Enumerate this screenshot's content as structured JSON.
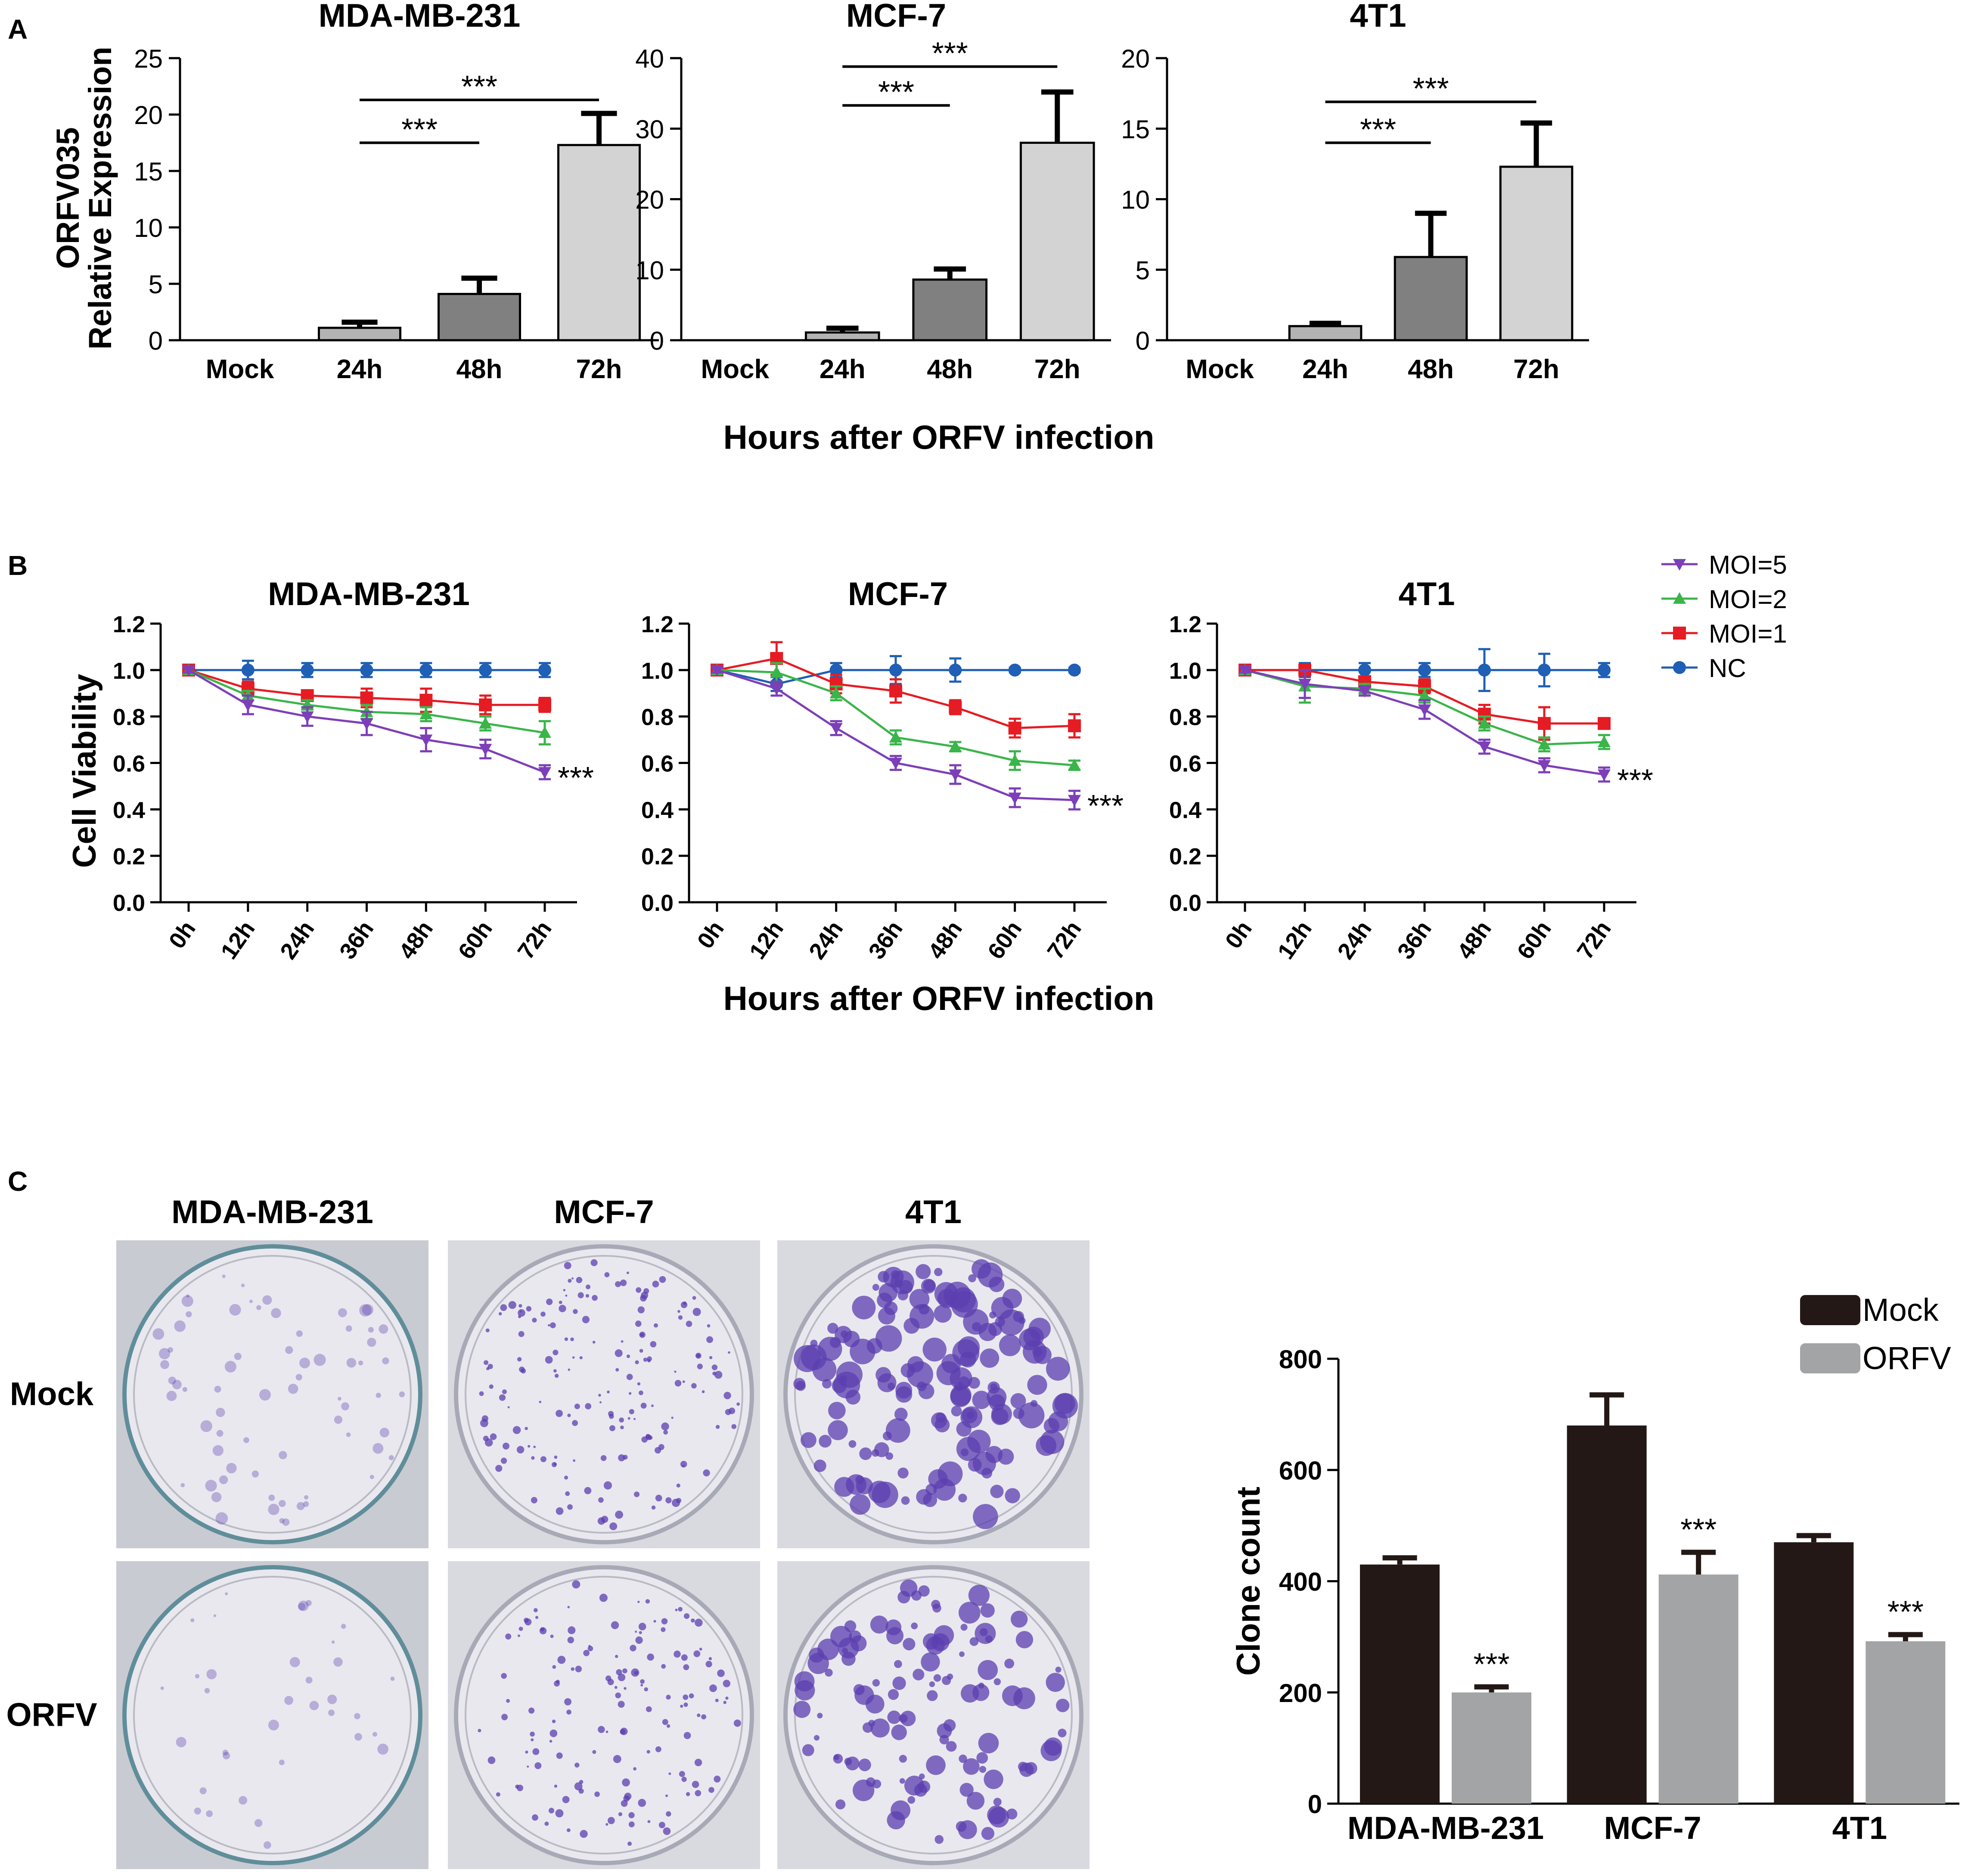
{
  "panel_letters": {
    "a": "A",
    "b": "B",
    "c": "C"
  },
  "colors": {
    "bar_24h": "#b3b3b3",
    "bar_48h": "#808080",
    "bar_72h": "#d3d3d3",
    "moi5": "#7d3fb8",
    "moi2": "#3ab54a",
    "moi1": "#e51c23",
    "nc": "#1f5fb5",
    "mock_bar": "#231815",
    "orfv_bar": "#a3a4a6",
    "stain": "#5b3fb0"
  },
  "panel_a": {
    "ylabel_lines": [
      "ORFV035",
      "Relative Expression"
    ],
    "xlabel": "Hours after ORFV infection",
    "chart_data": [
      {
        "type": "bar",
        "title": "MDA-MB-231",
        "categories": [
          "Mock",
          "24h",
          "48h",
          "72h"
        ],
        "values": [
          0,
          1.1,
          4.1,
          17.3
        ],
        "errors": [
          0,
          0.5,
          1.4,
          2.8
        ],
        "ylim": [
          0,
          25
        ],
        "yticks": [
          "0",
          "5",
          "10",
          "15",
          "20",
          "25"
        ],
        "significance": [
          {
            "from": 1,
            "to": 2,
            "level": 17.5,
            "label": "***"
          },
          {
            "from": 1,
            "to": 3,
            "level": 21.3,
            "label": "***"
          }
        ]
      },
      {
        "type": "bar",
        "title": "MCF-7",
        "categories": [
          "Mock",
          "24h",
          "48h",
          "72h"
        ],
        "values": [
          0,
          1.1,
          8.6,
          28.0
        ],
        "errors": [
          0,
          0.6,
          1.5,
          7.2
        ],
        "ylim": [
          0,
          40
        ],
        "yticks": [
          "0",
          "10",
          "20",
          "30",
          "40"
        ],
        "significance": [
          {
            "from": 1,
            "to": 2,
            "level": 33.3,
            "label": "***"
          },
          {
            "from": 1,
            "to": 3,
            "level": 38.8,
            "label": "***"
          }
        ]
      },
      {
        "type": "bar",
        "title": "4T1",
        "categories": [
          "Mock",
          "24h",
          "48h",
          "72h"
        ],
        "values": [
          0,
          1.0,
          5.9,
          12.3
        ],
        "errors": [
          0,
          0.2,
          3.1,
          3.1
        ],
        "ylim": [
          0,
          20
        ],
        "yticks": [
          "0",
          "5",
          "10",
          "15",
          "20"
        ],
        "significance": [
          {
            "from": 1,
            "to": 2,
            "level": 14.0,
            "label": "***"
          },
          {
            "from": 1,
            "to": 3,
            "level": 16.9,
            "label": "***"
          }
        ]
      }
    ]
  },
  "panel_b": {
    "ylabel": "Cell Viability",
    "xlabel": "Hours after ORFV infection",
    "legend": [
      "MOI=5",
      "MOI=2",
      "MOI=1",
      "NC"
    ],
    "chart_data": [
      {
        "type": "line",
        "title": "MDA-MB-231",
        "x": [
          "0h",
          "12h",
          "24h",
          "36h",
          "48h",
          "60h",
          "72h"
        ],
        "ylim": [
          0,
          1.2
        ],
        "yticks": [
          "0.0",
          "0.2",
          "0.4",
          "0.6",
          "0.8",
          "1.0",
          "1.2"
        ],
        "annotation": "***",
        "series": [
          {
            "name": "MOI=5",
            "values": [
              1.0,
              0.85,
              0.8,
              0.77,
              0.7,
              0.66,
              0.56
            ],
            "errors": [
              0.01,
              0.04,
              0.04,
              0.05,
              0.05,
              0.04,
              0.03
            ]
          },
          {
            "name": "MOI=2",
            "values": [
              1.0,
              0.89,
              0.85,
              0.82,
              0.81,
              0.77,
              0.73
            ],
            "errors": [
              0.01,
              0.02,
              0.02,
              0.03,
              0.03,
              0.03,
              0.05
            ]
          },
          {
            "name": "MOI=1",
            "values": [
              1.0,
              0.92,
              0.89,
              0.88,
              0.87,
              0.85,
              0.85
            ],
            "errors": [
              0.01,
              0.03,
              0.02,
              0.04,
              0.05,
              0.04,
              0.03
            ]
          },
          {
            "name": "NC",
            "values": [
              1.0,
              1.0,
              1.0,
              1.0,
              1.0,
              1.0,
              1.0
            ],
            "errors": [
              0.01,
              0.04,
              0.03,
              0.03,
              0.03,
              0.03,
              0.03
            ]
          }
        ]
      },
      {
        "type": "line",
        "title": "MCF-7",
        "x": [
          "0h",
          "12h",
          "24h",
          "36h",
          "48h",
          "60h",
          "72h"
        ],
        "ylim": [
          0,
          1.2
        ],
        "yticks": [
          "0.0",
          "0.2",
          "0.4",
          "0.6",
          "0.8",
          "1.0",
          "1.2"
        ],
        "annotation": "***",
        "series": [
          {
            "name": "MOI=5",
            "values": [
              1.0,
              0.92,
              0.75,
              0.6,
              0.55,
              0.45,
              0.44
            ],
            "errors": [
              0.01,
              0.03,
              0.03,
              0.03,
              0.04,
              0.04,
              0.04
            ]
          },
          {
            "name": "MOI=2",
            "values": [
              1.0,
              0.99,
              0.9,
              0.71,
              0.67,
              0.61,
              0.59
            ],
            "errors": [
              0.01,
              0.04,
              0.03,
              0.03,
              0.02,
              0.04,
              0.02
            ]
          },
          {
            "name": "MOI=1",
            "values": [
              1.0,
              1.05,
              0.94,
              0.91,
              0.84,
              0.75,
              0.76
            ],
            "errors": [
              0.01,
              0.07,
              0.04,
              0.05,
              0.03,
              0.04,
              0.05
            ]
          },
          {
            "name": "NC",
            "values": [
              1.0,
              0.94,
              1.0,
              1.0,
              1.0,
              1.0,
              1.0
            ],
            "errors": [
              0.01,
              0.03,
              0.03,
              0.06,
              0.05,
              0.01,
              0.01
            ]
          }
        ]
      },
      {
        "type": "line",
        "title": "4T1",
        "x": [
          "0h",
          "12h",
          "24h",
          "36h",
          "48h",
          "60h",
          "72h"
        ],
        "ylim": [
          0,
          1.2
        ],
        "yticks": [
          "0.0",
          "0.2",
          "0.4",
          "0.6",
          "0.8",
          "1.0",
          "1.2"
        ],
        "annotation": "***",
        "series": [
          {
            "name": "MOI=5",
            "values": [
              1.0,
              0.94,
              0.91,
              0.83,
              0.67,
              0.59,
              0.55
            ],
            "errors": [
              0.01,
              0.06,
              0.02,
              0.04,
              0.03,
              0.03,
              0.03
            ]
          },
          {
            "name": "MOI=2",
            "values": [
              1.0,
              0.93,
              0.92,
              0.89,
              0.77,
              0.68,
              0.69
            ],
            "errors": [
              0.01,
              0.07,
              0.02,
              0.03,
              0.03,
              0.03,
              0.03
            ]
          },
          {
            "name": "MOI=1",
            "values": [
              1.0,
              1.0,
              0.95,
              0.93,
              0.81,
              0.77,
              0.77
            ],
            "errors": [
              0.01,
              0.02,
              0.02,
              0.03,
              0.04,
              0.07,
              0.02
            ]
          },
          {
            "name": "NC",
            "values": [
              1.0,
              1.0,
              1.0,
              1.0,
              1.0,
              1.0,
              1.0
            ],
            "errors": [
              0.01,
              0.03,
              0.03,
              0.03,
              0.09,
              0.07,
              0.03
            ]
          }
        ]
      }
    ]
  },
  "panel_c": {
    "columns": [
      "MDA-MB-231",
      "MCF-7",
      "4T1"
    ],
    "rows": [
      "Mock",
      "ORFV"
    ],
    "chart_data": {
      "type": "bar",
      "categories": [
        "MDA-MB-231",
        "MCF-7",
        "4T1"
      ],
      "ylabel": "Clone count",
      "ylim": [
        0,
        800
      ],
      "yticks": [
        "0",
        "200",
        "400",
        "600",
        "800"
      ],
      "legend_placement": "top-right",
      "series": [
        {
          "name": "Mock",
          "values": [
            430,
            680,
            470
          ],
          "errors": [
            12,
            55,
            12
          ]
        },
        {
          "name": "ORFV",
          "values": [
            200,
            412,
            292
          ],
          "errors": [
            10,
            40,
            12
          ]
        }
      ],
      "annotations": [
        "***",
        "***",
        "***"
      ]
    }
  }
}
